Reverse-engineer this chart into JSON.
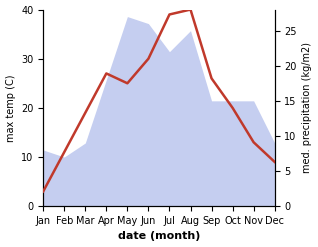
{
  "months": [
    "Jan",
    "Feb",
    "Mar",
    "Apr",
    "May",
    "Jun",
    "Jul",
    "Aug",
    "Sep",
    "Oct",
    "Nov",
    "Dec"
  ],
  "temperature": [
    3,
    11,
    19,
    27,
    25,
    30,
    39,
    40,
    26,
    20,
    13,
    9
  ],
  "precipitation": [
    8,
    7,
    9,
    18,
    27,
    26,
    22,
    25,
    15,
    15,
    15,
    9
  ],
  "temp_color": "#c0392b",
  "precip_fill_color": "#c5cef0",
  "precip_fill_edge": "#aab4e8",
  "temp_ylim": [
    0,
    40
  ],
  "precip_ylim": [
    0,
    28
  ],
  "xlabel": "date (month)",
  "ylabel_left": "max temp (C)",
  "ylabel_right": "med. precipitation (kg/m2)",
  "right_ticks": [
    0,
    5,
    10,
    15,
    20,
    25
  ],
  "left_ticks": [
    0,
    10,
    20,
    30,
    40
  ],
  "background_color": "#ffffff",
  "temp_linewidth": 1.8,
  "xlabel_fontsize": 8,
  "ylabel_fontsize": 7,
  "tick_fontsize": 7
}
